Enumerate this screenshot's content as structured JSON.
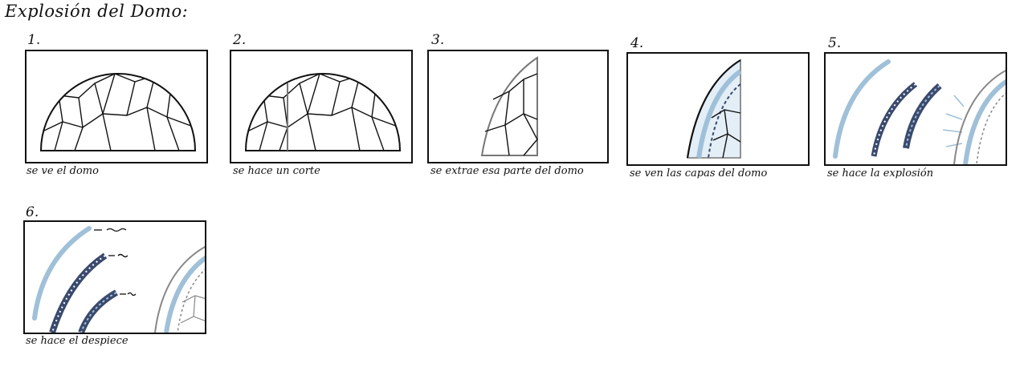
{
  "title": "Explosión del Domo:",
  "steps": [
    {
      "number": "1.",
      "caption": "se ve el domo"
    },
    {
      "number": "2.",
      "caption": "se hace un corte"
    },
    {
      "number": "3.",
      "caption": "se extrae esa parte del domo"
    },
    {
      "number": "4.",
      "caption": "se ven las capas del domo"
    },
    {
      "number": "5.",
      "caption": "se hace la explosión"
    },
    {
      "number": "6.",
      "caption": "se hace el despiece"
    }
  ],
  "colors": {
    "ink": "#111111",
    "light_blue": "#9fc0d8",
    "navy": "#3a4a6e",
    "gray": "#8a8a8a"
  }
}
